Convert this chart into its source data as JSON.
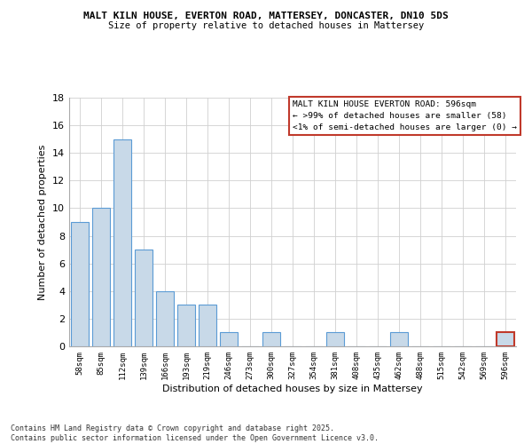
{
  "title_line1": "MALT KILN HOUSE, EVERTON ROAD, MATTERSEY, DONCASTER, DN10 5DS",
  "title_line2": "Size of property relative to detached houses in Mattersey",
  "categories": [
    "58sqm",
    "85sqm",
    "112sqm",
    "139sqm",
    "166sqm",
    "193sqm",
    "219sqm",
    "246sqm",
    "273sqm",
    "300sqm",
    "327sqm",
    "354sqm",
    "381sqm",
    "408sqm",
    "435sqm",
    "462sqm",
    "488sqm",
    "515sqm",
    "542sqm",
    "569sqm",
    "596sqm"
  ],
  "values": [
    9,
    10,
    15,
    7,
    4,
    3,
    3,
    1,
    0,
    1,
    0,
    0,
    1,
    0,
    0,
    1,
    0,
    0,
    0,
    0,
    1
  ],
  "bar_color": "#c8d9e8",
  "bar_edge_color": "#5b9bd5",
  "highlight_index": 20,
  "highlight_bar_edge_color": "#c0392b",
  "xlabel": "Distribution of detached houses by size in Mattersey",
  "ylabel": "Number of detached properties",
  "ylim": [
    0,
    18
  ],
  "yticks": [
    0,
    2,
    4,
    6,
    8,
    10,
    12,
    14,
    16,
    18
  ],
  "annotation_box_text": "MALT KILN HOUSE EVERTON ROAD: 596sqm\n← >99% of detached houses are smaller (58)\n<1% of semi-detached houses are larger (0) →",
  "annotation_box_color": "#c0392b",
  "footer_text": "Contains HM Land Registry data © Crown copyright and database right 2025.\nContains public sector information licensed under the Open Government Licence v3.0.",
  "background_color": "#ffffff",
  "grid_color": "#d0d0d0"
}
